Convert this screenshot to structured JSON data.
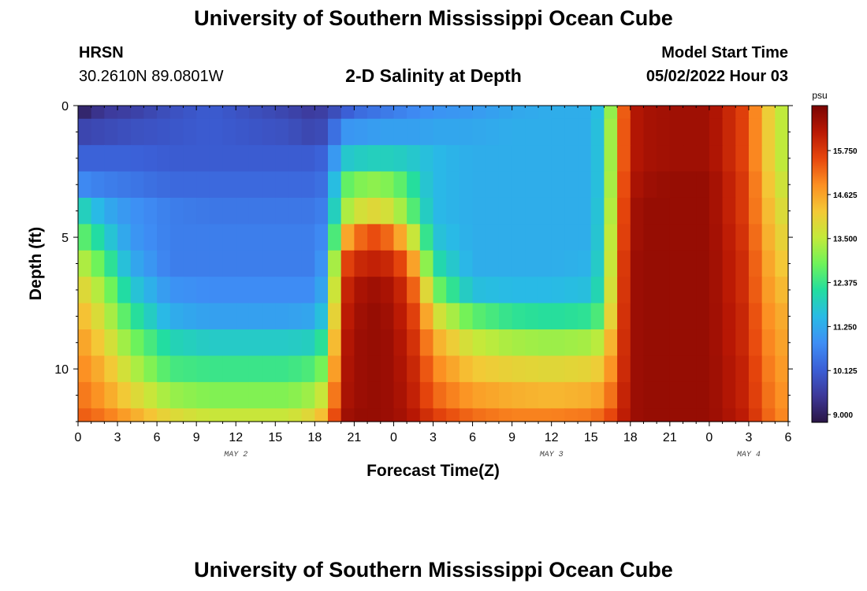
{
  "header": {
    "title": "University of Southern Mississippi Ocean Cube",
    "station": "HRSN",
    "coords": "30.2610N  89.0801W",
    "subtitle": "2-D Salinity at Depth",
    "start_label": "Model Start Time",
    "start_value": "05/02/2022 Hour 03"
  },
  "footer": {
    "title": "University of Southern Mississippi Ocean Cube"
  },
  "chart_data": {
    "type": "heatmap",
    "title": "2-D Salinity at Depth",
    "xlabel": "Forecast Time(Z)",
    "ylabel": "Depth (ft)",
    "xlim": [
      0,
      54
    ],
    "ylim": [
      12,
      0
    ],
    "x_ticks": [
      0,
      3,
      6,
      9,
      12,
      15,
      18,
      21,
      24,
      27,
      30,
      33,
      36,
      39,
      42,
      45,
      48,
      51,
      54
    ],
    "x_tick_labels": [
      "0",
      "3",
      "6",
      "9",
      "12",
      "15",
      "18",
      "21",
      "0",
      "3",
      "6",
      "9",
      "12",
      "15",
      "18",
      "21",
      "0",
      "3",
      "6"
    ],
    "date_labels": [
      {
        "x": 12,
        "text": "MAY 2"
      },
      {
        "x": 36,
        "text": "MAY 3"
      },
      {
        "x": 51,
        "text": "MAY 4"
      }
    ],
    "y_ticks": [
      0,
      5,
      10
    ],
    "y_tick_labels": [
      "0",
      "5",
      "10"
    ],
    "depth_levels": [
      0,
      1,
      2,
      3,
      4,
      5,
      6,
      7,
      8,
      9,
      10,
      11,
      12
    ],
    "depth_layers": [
      0.25,
      1,
      2,
      3,
      4,
      5,
      6,
      7,
      8,
      9,
      10,
      11,
      12
    ],
    "keyframes_time": [
      0,
      2,
      4,
      7,
      10,
      13,
      16,
      18,
      19,
      20,
      21,
      22,
      23,
      24,
      25,
      26,
      27,
      30,
      33,
      36,
      39,
      40,
      41,
      42,
      43,
      45,
      48,
      51,
      52,
      54
    ],
    "keyframes_salinity": [
      [
        9.0,
        9.5,
        9.6,
        9.9,
        10.1,
        9.9,
        9.7,
        9.5,
        9.7,
        10.0,
        10.3,
        10.4,
        10.5,
        10.6,
        10.7,
        10.8,
        10.9,
        11.0,
        11.2,
        11.3,
        11.3,
        11.8,
        14.5,
        16.2,
        16.4,
        16.5,
        16.5,
        15.5,
        14.4,
        13.2
      ],
      [
        9.7,
        9.8,
        9.9,
        10.0,
        10.1,
        10.0,
        9.9,
        9.7,
        9.9,
        10.9,
        11.0,
        11.0,
        11.1,
        11.1,
        11.1,
        11.1,
        11.2,
        11.2,
        11.3,
        11.3,
        11.3,
        11.9,
        14.6,
        16.2,
        16.4,
        16.5,
        16.5,
        15.5,
        14.4,
        13.2
      ],
      [
        10.2,
        10.2,
        10.2,
        10.1,
        10.1,
        10.1,
        10.1,
        10.1,
        10.3,
        11.7,
        11.8,
        11.9,
        11.9,
        11.9,
        11.8,
        11.7,
        11.5,
        11.3,
        11.3,
        11.3,
        11.3,
        11.9,
        14.6,
        16.2,
        16.4,
        16.5,
        16.5,
        15.5,
        14.4,
        13.2
      ],
      [
        10.8,
        10.6,
        10.5,
        10.3,
        10.3,
        10.3,
        10.3,
        10.3,
        10.5,
        12.6,
        12.9,
        13.1,
        13.1,
        12.9,
        12.5,
        11.9,
        11.5,
        11.3,
        11.3,
        11.3,
        11.3,
        11.9,
        14.7,
        16.3,
        16.5,
        16.6,
        16.6,
        15.6,
        14.5,
        13.4
      ],
      [
        12.1,
        11.3,
        10.9,
        10.6,
        10.5,
        10.5,
        10.5,
        10.5,
        10.7,
        13.1,
        13.6,
        13.9,
        13.9,
        13.6,
        13.0,
        12.2,
        11.5,
        11.3,
        11.3,
        11.3,
        11.3,
        12.0,
        14.8,
        16.4,
        16.6,
        16.6,
        16.6,
        15.6,
        14.6,
        13.6
      ],
      [
        12.9,
        11.9,
        11.0,
        10.6,
        10.6,
        10.6,
        10.6,
        10.6,
        10.9,
        14.2,
        15.0,
        15.5,
        15.5,
        15.0,
        14.2,
        13.0,
        11.7,
        11.3,
        11.3,
        11.3,
        11.3,
        12.1,
        14.9,
        16.4,
        16.6,
        16.6,
        16.6,
        15.7,
        14.7,
        13.8
      ],
      [
        13.6,
        12.6,
        11.3,
        10.6,
        10.6,
        10.6,
        10.6,
        10.6,
        11.2,
        15.4,
        15.9,
        16.1,
        16.1,
        15.9,
        15.3,
        14.0,
        12.2,
        11.3,
        11.3,
        11.3,
        11.4,
        12.2,
        15.0,
        16.5,
        16.6,
        16.6,
        16.6,
        15.8,
        14.8,
        14.0
      ],
      [
        14.1,
        13.2,
        11.8,
        10.9,
        10.8,
        10.8,
        10.8,
        10.8,
        11.5,
        15.8,
        16.3,
        16.5,
        16.5,
        16.3,
        15.8,
        14.8,
        13.0,
        11.6,
        11.5,
        11.5,
        11.6,
        12.4,
        15.1,
        16.5,
        16.6,
        16.6,
        16.6,
        15.8,
        14.9,
        14.2
      ],
      [
        14.5,
        13.6,
        12.4,
        11.3,
        11.1,
        11.1,
        11.1,
        11.2,
        12.0,
        16.0,
        16.4,
        16.6,
        16.6,
        16.4,
        16.0,
        15.3,
        13.9,
        12.7,
        12.3,
        12.2,
        12.3,
        12.8,
        15.2,
        16.5,
        16.6,
        16.6,
        16.6,
        15.9,
        15.0,
        14.4
      ],
      [
        14.8,
        14.0,
        13.0,
        12.0,
        11.8,
        11.8,
        11.8,
        11.9,
        12.6,
        16.1,
        16.5,
        16.6,
        16.6,
        16.5,
        16.1,
        15.6,
        14.6,
        13.6,
        13.3,
        13.2,
        13.3,
        13.6,
        15.3,
        16.5,
        16.6,
        16.6,
        16.6,
        15.9,
        15.1,
        14.5
      ],
      [
        15.0,
        14.4,
        13.5,
        12.5,
        12.4,
        12.4,
        12.4,
        12.6,
        13.2,
        16.2,
        16.5,
        16.6,
        16.6,
        16.5,
        16.2,
        15.8,
        15.0,
        14.2,
        14.0,
        13.9,
        14.0,
        14.2,
        15.4,
        16.5,
        16.6,
        16.6,
        16.6,
        16.0,
        15.2,
        14.6
      ],
      [
        15.2,
        14.7,
        14.0,
        13.2,
        13.0,
        13.0,
        13.0,
        13.3,
        13.9,
        16.3,
        16.5,
        16.6,
        16.6,
        16.5,
        16.3,
        15.9,
        15.3,
        14.7,
        14.5,
        14.4,
        14.5,
        14.7,
        15.6,
        16.5,
        16.6,
        16.6,
        16.6,
        16.0,
        15.3,
        14.7
      ],
      [
        15.4,
        15.1,
        14.6,
        13.9,
        13.6,
        13.6,
        13.6,
        14.0,
        14.6,
        16.4,
        16.6,
        16.6,
        16.6,
        16.5,
        16.4,
        16.1,
        15.7,
        15.2,
        15.0,
        15.0,
        15.1,
        15.3,
        15.8,
        16.5,
        16.6,
        16.6,
        16.6,
        16.1,
        15.4,
        14.8
      ]
    ],
    "colorbar": {
      "unit": "psu",
      "min": 8.8,
      "max": 16.9,
      "tick_values": [
        9.0,
        10.125,
        11.25,
        12.375,
        13.5,
        14.625,
        15.75
      ],
      "tick_labels": [
        "9.000",
        "10.125",
        "11.250",
        "12.375",
        "13.500",
        "14.625",
        "15.750"
      ],
      "color_stops": [
        "#2a1545",
        "#3d3898",
        "#3b5fd6",
        "#3e8ef5",
        "#29bae6",
        "#22dda0",
        "#6ef35a",
        "#c3ea3a",
        "#f4c836",
        "#fc8f22",
        "#e7470d",
        "#b91804",
        "#7a0403"
      ]
    }
  }
}
